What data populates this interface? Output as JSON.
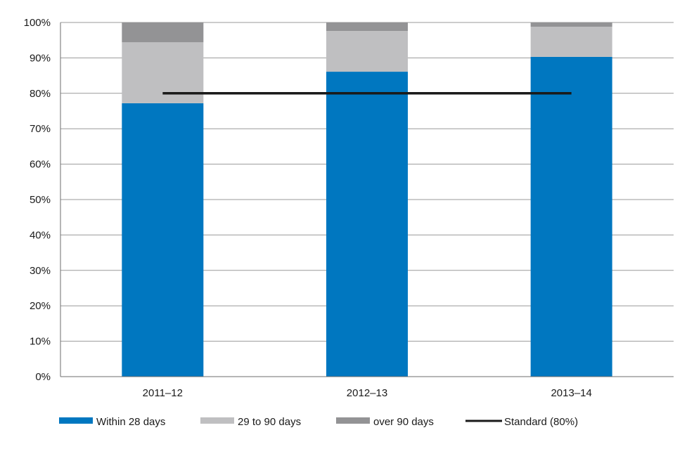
{
  "chart_data": {
    "type": "bar",
    "stacked": true,
    "categories": [
      "2011–12",
      "2012–13",
      "2013–14"
    ],
    "series": [
      {
        "name": "Within 28 days",
        "values": [
          77.2,
          86.1,
          90.3
        ],
        "color": "#0077c0"
      },
      {
        "name": "29 to 90 days",
        "values": [
          17.2,
          11.5,
          8.5
        ],
        "color": "#bfbfc1"
      },
      {
        "name": "over 90 days",
        "values": [
          5.6,
          2.4,
          1.2
        ],
        "color": "#939395"
      }
    ],
    "reference_line": {
      "name": "Standard (80%)",
      "value": 80,
      "color": "#1a1a1a"
    },
    "y_ticks": [
      "0%",
      "10%",
      "20%",
      "30%",
      "40%",
      "50%",
      "60%",
      "70%",
      "80%",
      "90%",
      "100%"
    ],
    "ylim": [
      0,
      100
    ],
    "title": "",
    "xlabel": "",
    "ylabel": "",
    "grid": true,
    "legend_position": "bottom"
  }
}
